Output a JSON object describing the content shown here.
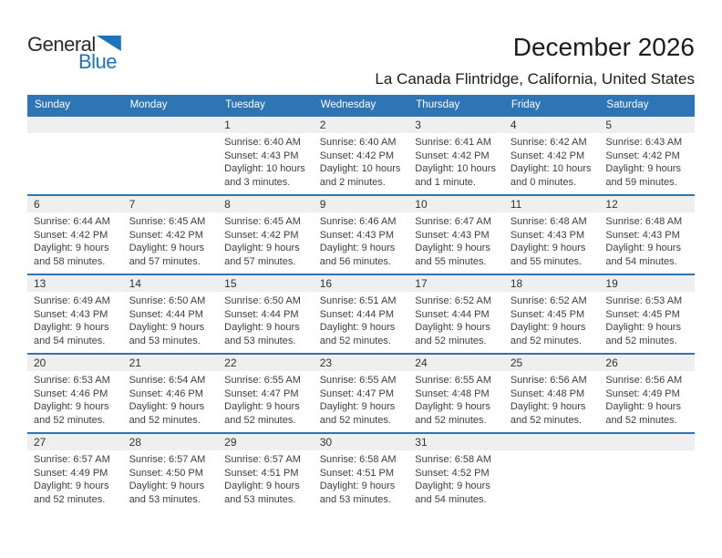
{
  "logo": {
    "general": "General",
    "blue": "Blue"
  },
  "header": {
    "title": "December 2026",
    "subtitle": "La Canada Flintridge, California, United States"
  },
  "labels": {
    "sunrise": "Sunrise:",
    "sunset": "Sunset:",
    "daylight": "Daylight:"
  },
  "colors": {
    "header_bg": "#2e75b6",
    "week_divider": "#2e75b6",
    "number_band_bg": "#efefef",
    "logo_blue": "#1b75bc",
    "weekday_text": "#ffffff"
  },
  "calendar": {
    "weekdays": [
      "Sunday",
      "Monday",
      "Tuesday",
      "Wednesday",
      "Thursday",
      "Friday",
      "Saturday"
    ],
    "weeks": [
      [
        null,
        null,
        {
          "day": "1",
          "sunrise": "6:40 AM",
          "sunset": "4:43 PM",
          "daylight": "10 hours and 3 minutes."
        },
        {
          "day": "2",
          "sunrise": "6:40 AM",
          "sunset": "4:42 PM",
          "daylight": "10 hours and 2 minutes."
        },
        {
          "day": "3",
          "sunrise": "6:41 AM",
          "sunset": "4:42 PM",
          "daylight": "10 hours and 1 minute."
        },
        {
          "day": "4",
          "sunrise": "6:42 AM",
          "sunset": "4:42 PM",
          "daylight": "10 hours and 0 minutes."
        },
        {
          "day": "5",
          "sunrise": "6:43 AM",
          "sunset": "4:42 PM",
          "daylight": "9 hours and 59 minutes."
        }
      ],
      [
        {
          "day": "6",
          "sunrise": "6:44 AM",
          "sunset": "4:42 PM",
          "daylight": "9 hours and 58 minutes."
        },
        {
          "day": "7",
          "sunrise": "6:45 AM",
          "sunset": "4:42 PM",
          "daylight": "9 hours and 57 minutes."
        },
        {
          "day": "8",
          "sunrise": "6:45 AM",
          "sunset": "4:42 PM",
          "daylight": "9 hours and 57 minutes."
        },
        {
          "day": "9",
          "sunrise": "6:46 AM",
          "sunset": "4:43 PM",
          "daylight": "9 hours and 56 minutes."
        },
        {
          "day": "10",
          "sunrise": "6:47 AM",
          "sunset": "4:43 PM",
          "daylight": "9 hours and 55 minutes."
        },
        {
          "day": "11",
          "sunrise": "6:48 AM",
          "sunset": "4:43 PM",
          "daylight": "9 hours and 55 minutes."
        },
        {
          "day": "12",
          "sunrise": "6:48 AM",
          "sunset": "4:43 PM",
          "daylight": "9 hours and 54 minutes."
        }
      ],
      [
        {
          "day": "13",
          "sunrise": "6:49 AM",
          "sunset": "4:43 PM",
          "daylight": "9 hours and 54 minutes."
        },
        {
          "day": "14",
          "sunrise": "6:50 AM",
          "sunset": "4:44 PM",
          "daylight": "9 hours and 53 minutes."
        },
        {
          "day": "15",
          "sunrise": "6:50 AM",
          "sunset": "4:44 PM",
          "daylight": "9 hours and 53 minutes."
        },
        {
          "day": "16",
          "sunrise": "6:51 AM",
          "sunset": "4:44 PM",
          "daylight": "9 hours and 52 minutes."
        },
        {
          "day": "17",
          "sunrise": "6:52 AM",
          "sunset": "4:44 PM",
          "daylight": "9 hours and 52 minutes."
        },
        {
          "day": "18",
          "sunrise": "6:52 AM",
          "sunset": "4:45 PM",
          "daylight": "9 hours and 52 minutes."
        },
        {
          "day": "19",
          "sunrise": "6:53 AM",
          "sunset": "4:45 PM",
          "daylight": "9 hours and 52 minutes."
        }
      ],
      [
        {
          "day": "20",
          "sunrise": "6:53 AM",
          "sunset": "4:46 PM",
          "daylight": "9 hours and 52 minutes."
        },
        {
          "day": "21",
          "sunrise": "6:54 AM",
          "sunset": "4:46 PM",
          "daylight": "9 hours and 52 minutes."
        },
        {
          "day": "22",
          "sunrise": "6:55 AM",
          "sunset": "4:47 PM",
          "daylight": "9 hours and 52 minutes."
        },
        {
          "day": "23",
          "sunrise": "6:55 AM",
          "sunset": "4:47 PM",
          "daylight": "9 hours and 52 minutes."
        },
        {
          "day": "24",
          "sunrise": "6:55 AM",
          "sunset": "4:48 PM",
          "daylight": "9 hours and 52 minutes."
        },
        {
          "day": "25",
          "sunrise": "6:56 AM",
          "sunset": "4:48 PM",
          "daylight": "9 hours and 52 minutes."
        },
        {
          "day": "26",
          "sunrise": "6:56 AM",
          "sunset": "4:49 PM",
          "daylight": "9 hours and 52 minutes."
        }
      ],
      [
        {
          "day": "27",
          "sunrise": "6:57 AM",
          "sunset": "4:49 PM",
          "daylight": "9 hours and 52 minutes."
        },
        {
          "day": "28",
          "sunrise": "6:57 AM",
          "sunset": "4:50 PM",
          "daylight": "9 hours and 53 minutes."
        },
        {
          "day": "29",
          "sunrise": "6:57 AM",
          "sunset": "4:51 PM",
          "daylight": "9 hours and 53 minutes."
        },
        {
          "day": "30",
          "sunrise": "6:58 AM",
          "sunset": "4:51 PM",
          "daylight": "9 hours and 53 minutes."
        },
        {
          "day": "31",
          "sunrise": "6:58 AM",
          "sunset": "4:52 PM",
          "daylight": "9 hours and 54 minutes."
        },
        null,
        null
      ]
    ]
  }
}
